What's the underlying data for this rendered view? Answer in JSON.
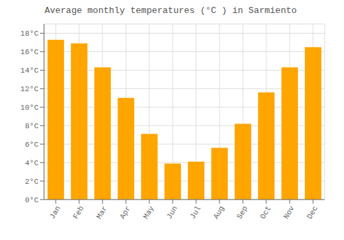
{
  "chart_data": {
    "type": "bar",
    "title": "Average monthly temperatures (°C ) in Sarmiento",
    "categories": [
      "Jan",
      "Feb",
      "Mar",
      "Apr",
      "May",
      "Jun",
      "Jul",
      "Aug",
      "Sep",
      "Oct",
      "Nov",
      "Dec"
    ],
    "values": [
      17.3,
      16.9,
      14.3,
      11.0,
      7.1,
      3.9,
      4.1,
      5.6,
      8.2,
      11.6,
      14.3,
      16.5
    ],
    "color": "#FFA500",
    "ylim": [
      0,
      19
    ],
    "yticks": [
      {
        "value": 0,
        "label": "0°C"
      },
      {
        "value": 2,
        "label": "2°C"
      },
      {
        "value": 4,
        "label": "4°C"
      },
      {
        "value": 6,
        "label": "6°C"
      },
      {
        "value": 8,
        "label": "8°C"
      },
      {
        "value": 10,
        "label": "10°C"
      },
      {
        "value": 12,
        "label": "12°C"
      },
      {
        "value": 14,
        "label": "14°C"
      },
      {
        "value": 16,
        "label": "16°C"
      },
      {
        "value": 18,
        "label": "18°C"
      }
    ],
    "grid": true
  }
}
